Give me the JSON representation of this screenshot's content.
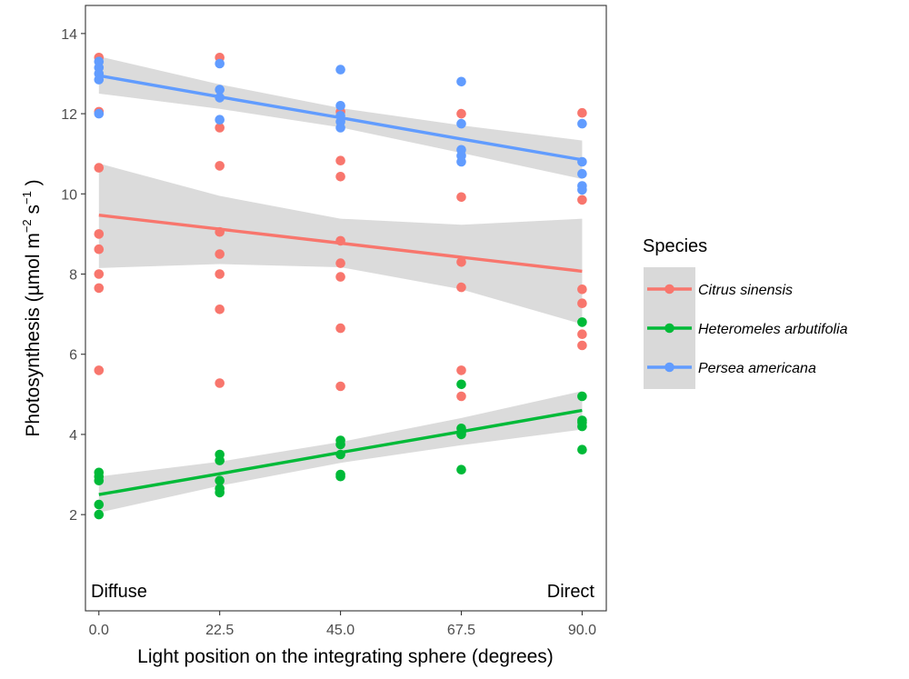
{
  "chart_data": {
    "type": "scatter",
    "xlabel": "Light position on the integrating sphere (degrees)",
    "ylabel_parts": [
      "Photosynthesis (µmol m",
      "−2",
      " s",
      "−1",
      " )"
    ],
    "x_ticks": [
      0.0,
      22.5,
      45.0,
      67.5,
      90.0
    ],
    "x_tick_labels": [
      "0.0",
      "22.5",
      "45.0",
      "67.5",
      "90.0"
    ],
    "y_ticks": [
      2,
      4,
      6,
      8,
      10,
      12,
      14
    ],
    "y_tick_labels": [
      "2",
      "4",
      "6",
      "8",
      "10",
      "12",
      "14"
    ],
    "xlim": [
      -2.5,
      94.5
    ],
    "ylim": [
      -0.4,
      14.7
    ],
    "grid": false,
    "legend_title": "Species",
    "legend_position": "right",
    "annotations": {
      "left": "Diffuse",
      "right": "Direct"
    },
    "band_color": "#d9d9d9",
    "series": [
      {
        "name": "Citrus sinensis",
        "color": "#F8766D",
        "points": [
          [
            0,
            13.4
          ],
          [
            0,
            12.05
          ],
          [
            0,
            10.65
          ],
          [
            0,
            9.0
          ],
          [
            0,
            8.62
          ],
          [
            0,
            8.0
          ],
          [
            0,
            7.65
          ],
          [
            0,
            5.6
          ],
          [
            22.5,
            13.4
          ],
          [
            22.5,
            11.65
          ],
          [
            22.5,
            10.7
          ],
          [
            22.5,
            9.05
          ],
          [
            22.5,
            8.5
          ],
          [
            22.5,
            8.0
          ],
          [
            22.5,
            7.12
          ],
          [
            22.5,
            5.28
          ],
          [
            45,
            12.05
          ],
          [
            45,
            10.83
          ],
          [
            45,
            10.43
          ],
          [
            45,
            8.83
          ],
          [
            45,
            8.27
          ],
          [
            45,
            7.93
          ],
          [
            45,
            6.65
          ],
          [
            45,
            5.2
          ],
          [
            67.5,
            12.0
          ],
          [
            67.5,
            9.92
          ],
          [
            67.5,
            8.3
          ],
          [
            67.5,
            7.67
          ],
          [
            67.5,
            5.6
          ],
          [
            67.5,
            4.95
          ],
          [
            90,
            12.02
          ],
          [
            90,
            9.85
          ],
          [
            90,
            7.62
          ],
          [
            90,
            7.27
          ],
          [
            90,
            6.5
          ],
          [
            90,
            6.22
          ]
        ],
        "fit": {
          "x": [
            0,
            22.5,
            45,
            67.5,
            90
          ],
          "y": [
            9.47,
            9.12,
            8.77,
            8.42,
            8.07
          ],
          "lower": [
            8.15,
            8.25,
            8.17,
            7.62,
            6.75
          ],
          "upper": [
            10.76,
            9.95,
            9.38,
            9.23,
            9.38
          ]
        }
      },
      {
        "name": "Heteromeles arbutifolia",
        "color": "#00BA38",
        "points": [
          [
            0,
            3.05
          ],
          [
            0,
            2.95
          ],
          [
            0,
            2.85
          ],
          [
            0,
            2.25
          ],
          [
            0,
            2.0
          ],
          [
            22.5,
            3.5
          ],
          [
            22.5,
            3.35
          ],
          [
            22.5,
            2.85
          ],
          [
            22.5,
            2.65
          ],
          [
            22.5,
            2.55
          ],
          [
            45,
            3.85
          ],
          [
            45,
            3.75
          ],
          [
            45,
            3.5
          ],
          [
            45,
            3.0
          ],
          [
            45,
            2.95
          ],
          [
            67.5,
            5.25
          ],
          [
            67.5,
            4.15
          ],
          [
            67.5,
            4.05
          ],
          [
            67.5,
            4.0
          ],
          [
            67.5,
            3.12
          ],
          [
            90,
            6.8
          ],
          [
            90,
            4.95
          ],
          [
            90,
            4.35
          ],
          [
            90,
            4.3
          ],
          [
            90,
            4.2
          ],
          [
            90,
            3.62
          ]
        ],
        "fit": {
          "x": [
            0,
            22.5,
            45,
            67.5,
            90
          ],
          "y": [
            2.5,
            3.02,
            3.55,
            4.07,
            4.6
          ],
          "lower": [
            2.05,
            2.72,
            3.29,
            3.73,
            4.12
          ],
          "upper": [
            2.95,
            3.32,
            3.81,
            4.41,
            5.08
          ]
        }
      },
      {
        "name": "Persea americana",
        "color": "#619CFF",
        "points": [
          [
            0,
            13.3
          ],
          [
            0,
            13.15
          ],
          [
            0,
            13.0
          ],
          [
            0,
            12.85
          ],
          [
            0,
            12.0
          ],
          [
            22.5,
            13.25
          ],
          [
            22.5,
            12.6
          ],
          [
            22.5,
            12.4
          ],
          [
            22.5,
            11.85
          ],
          [
            45,
            13.1
          ],
          [
            45,
            12.2
          ],
          [
            45,
            11.95
          ],
          [
            45,
            11.8
          ],
          [
            45,
            11.65
          ],
          [
            67.5,
            12.8
          ],
          [
            67.5,
            11.75
          ],
          [
            67.5,
            11.1
          ],
          [
            67.5,
            10.95
          ],
          [
            67.5,
            10.8
          ],
          [
            90,
            11.75
          ],
          [
            90,
            10.8
          ],
          [
            90,
            10.5
          ],
          [
            90,
            10.2
          ],
          [
            90,
            10.1
          ]
        ],
        "fit": {
          "x": [
            0,
            22.5,
            45,
            67.5,
            90
          ],
          "y": [
            12.95,
            12.42,
            11.9,
            11.37,
            10.85
          ],
          "lower": [
            12.5,
            12.12,
            11.66,
            11.02,
            10.37
          ],
          "upper": [
            13.43,
            12.73,
            12.14,
            11.71,
            11.33
          ]
        }
      }
    ]
  }
}
